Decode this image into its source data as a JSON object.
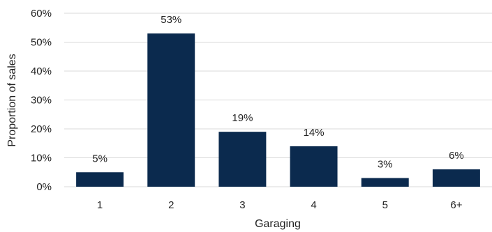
{
  "chart_data": {
    "type": "bar",
    "xlabel": "Garaging",
    "ylabel": "Proportion of sales",
    "categories": [
      "1",
      "2",
      "3",
      "4",
      "5",
      "6+"
    ],
    "values": [
      5,
      53,
      19,
      14,
      3,
      6
    ],
    "data_labels": [
      "5%",
      "53%",
      "19%",
      "14%",
      "3%",
      "6%"
    ],
    "ylim": [
      0,
      60
    ],
    "yticks": [
      0,
      10,
      20,
      30,
      40,
      50,
      60
    ],
    "ytick_labels": [
      "0%",
      "10%",
      "20%",
      "30%",
      "40%",
      "50%",
      "60%"
    ],
    "grid": true,
    "legend": "none",
    "bar_color": "#0b2a4e"
  }
}
